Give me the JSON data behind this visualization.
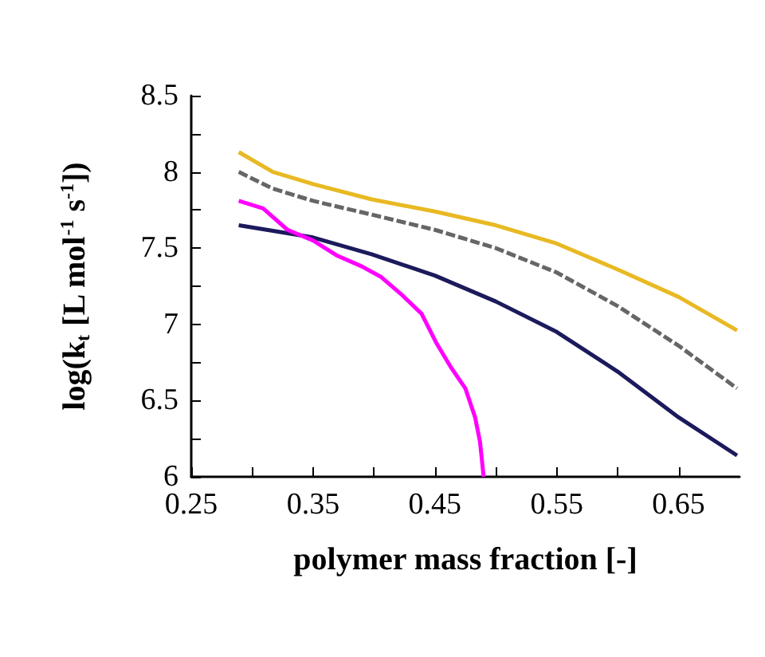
{
  "chart_data": {
    "type": "line",
    "xlabel": "polymer mass fraction [-]",
    "ylabel": "log(k$_{t}$ [L mol$^{-1}$ s$^{-1}$])",
    "xlim": [
      0.25,
      0.7
    ],
    "xticks": [
      0.25,
      {
        "value": 0.3,
        "label": null
      },
      0.35,
      {
        "value": 0.4,
        "label": null
      },
      0.45,
      {
        "value": 0.5,
        "label": null
      },
      0.55,
      {
        "value": 0.6,
        "label": null
      },
      0.65
    ],
    "ylim": [
      6,
      8.5
    ],
    "yticks": [
      6,
      {
        "value": 6.25,
        "label": null
      },
      6.5,
      {
        "value": 6.75,
        "label": null
      },
      7,
      {
        "value": 7.25,
        "label": null
      },
      7.5,
      {
        "value": 7.75,
        "label": null
      },
      8,
      {
        "value": 8.25,
        "label": null
      },
      8.5
    ],
    "grid": false,
    "marker": "none",
    "series": [
      {
        "color": "#e8b923",
        "x": [
          0.289,
          0.317,
          0.35,
          0.398,
          0.45,
          0.5,
          0.55,
          0.6,
          0.65,
          0.698
        ],
        "values": [
          8.13,
          8.0,
          7.92,
          7.82,
          7.74,
          7.65,
          7.53,
          7.36,
          7.18,
          6.96
        ]
      },
      {
        "color": "#666666",
        "line_style": "dashed",
        "x": [
          0.289,
          0.317,
          0.35,
          0.398,
          0.45,
          0.5,
          0.55,
          0.6,
          0.65,
          0.698
        ],
        "values": [
          8.0,
          7.89,
          7.81,
          7.72,
          7.62,
          7.5,
          7.34,
          7.12,
          6.86,
          6.58
        ]
      },
      {
        "color": "#1c1a5c",
        "x": [
          0.289,
          0.35,
          0.398,
          0.45,
          0.5,
          0.55,
          0.6,
          0.65,
          0.698
        ],
        "values": [
          7.65,
          7.57,
          7.46,
          7.32,
          7.15,
          6.95,
          6.69,
          6.39,
          6.14
        ]
      },
      {
        "color": "#ff00ff",
        "x": [
          0.289,
          0.309,
          0.329,
          0.35,
          0.37,
          0.39,
          0.406,
          0.422,
          0.439,
          0.451,
          0.463,
          0.475,
          0.483,
          0.487,
          0.49
        ],
        "values": [
          7.81,
          7.76,
          7.62,
          7.55,
          7.45,
          7.38,
          7.31,
          7.2,
          7.07,
          6.88,
          6.72,
          6.58,
          6.39,
          6.23,
          6.0
        ]
      }
    ]
  }
}
